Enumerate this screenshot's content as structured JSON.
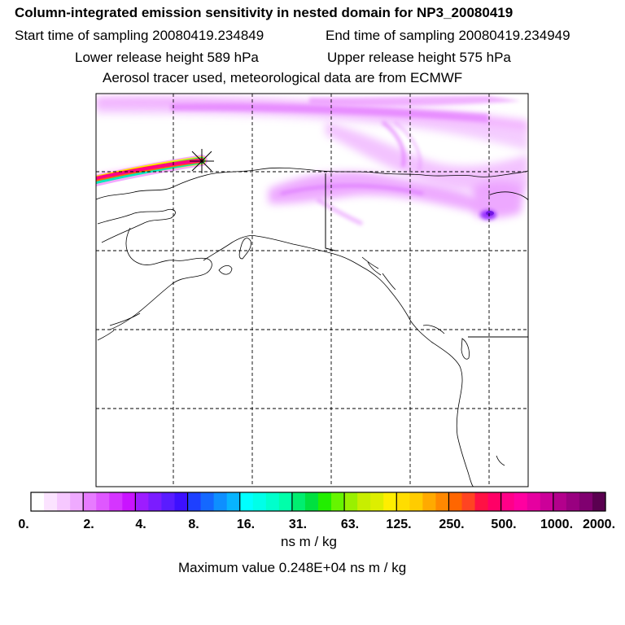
{
  "header": {
    "title": "Column-integrated emission sensitivity in nested domain for NP3_20080419",
    "start_sampling": "Start time of sampling 20080419.234849",
    "end_sampling": "End time of sampling 20080419.234949",
    "lower_release": "Lower release height  589 hPa",
    "upper_release": "Upper release height  575 hPa",
    "tracer_info": "Aerosol tracer used, meteorological data are from ECMWF"
  },
  "colorbar": {
    "labels": [
      "0.",
      "2.",
      "4.",
      "8.",
      "16.",
      "31.",
      "63.",
      "125.",
      "250.",
      "500.",
      "1000.",
      "2000."
    ],
    "colors": [
      "#ffffff",
      "#fbe3ff",
      "#f6c8ff",
      "#efaaff",
      "#e77bff",
      "#df58ff",
      "#d535ff",
      "#c914ff",
      "#9d1cff",
      "#7b1cff",
      "#5a1cff",
      "#3d10ff",
      "#1e40ff",
      "#1468ff",
      "#0e8fff",
      "#08b4ff",
      "#00ffff",
      "#00ffe8",
      "#00ffcc",
      "#00ffaa",
      "#00ee70",
      "#00e040",
      "#22ee00",
      "#66f500",
      "#99f000",
      "#c8ee00",
      "#ddee00",
      "#ffee00",
      "#ffdd00",
      "#ffcc00",
      "#ffaa00",
      "#ff8800",
      "#ff6600",
      "#ff4422",
      "#ff1144",
      "#ff0066",
      "#ff0088",
      "#ff00a0",
      "#e600a0",
      "#cc0099",
      "#b3008c",
      "#990080",
      "#800070",
      "#5a0050"
    ],
    "units": "ns m / kg",
    "max_value": "Maximum value  0.248E+04 ns m / kg"
  }
}
